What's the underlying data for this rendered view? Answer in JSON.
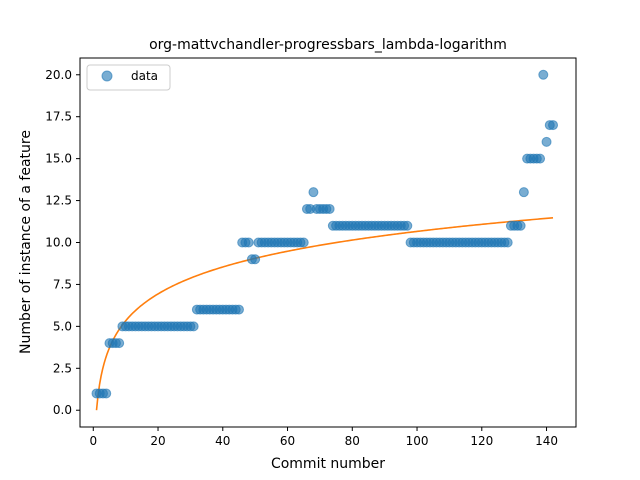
{
  "chart_data": {
    "type": "scatter",
    "title": "org-mattvchandler-progressbars_lambda-logarithm",
    "xlabel": "Commit number",
    "ylabel": "Number of instance of a feature",
    "xlim": [
      -4.1,
      149.1
    ],
    "ylim": [
      -1.0,
      21.0
    ],
    "x_ticks": [
      0,
      20,
      40,
      60,
      80,
      100,
      120,
      140
    ],
    "y_ticks": [
      0.0,
      2.5,
      5.0,
      7.5,
      10.0,
      12.5,
      15.0,
      17.5,
      20.0
    ],
    "x_tick_labels": [
      "0",
      "20",
      "40",
      "60",
      "80",
      "100",
      "120",
      "140"
    ],
    "y_tick_labels": [
      "0.0",
      "2.5",
      "5.0",
      "7.5",
      "10.0",
      "12.5",
      "15.0",
      "17.5",
      "20.0"
    ],
    "grid": false,
    "legend_position": "upper-left",
    "series": [
      {
        "name": "data",
        "kind": "scatter",
        "color": "#1f77b4",
        "points": [
          [
            1,
            1
          ],
          [
            2,
            1
          ],
          [
            3,
            1
          ],
          [
            4,
            1
          ],
          [
            5,
            4
          ],
          [
            6,
            4
          ],
          [
            7,
            4
          ],
          [
            8,
            4
          ],
          [
            9,
            5
          ],
          [
            10,
            5
          ],
          [
            11,
            5
          ],
          [
            12,
            5
          ],
          [
            13,
            5
          ],
          [
            14,
            5
          ],
          [
            15,
            5
          ],
          [
            16,
            5
          ],
          [
            17,
            5
          ],
          [
            18,
            5
          ],
          [
            19,
            5
          ],
          [
            20,
            5
          ],
          [
            21,
            5
          ],
          [
            22,
            5
          ],
          [
            23,
            5
          ],
          [
            24,
            5
          ],
          [
            25,
            5
          ],
          [
            26,
            5
          ],
          [
            27,
            5
          ],
          [
            28,
            5
          ],
          [
            29,
            5
          ],
          [
            30,
            5
          ],
          [
            31,
            5
          ],
          [
            32,
            6
          ],
          [
            33,
            6
          ],
          [
            34,
            6
          ],
          [
            35,
            6
          ],
          [
            36,
            6
          ],
          [
            37,
            6
          ],
          [
            38,
            6
          ],
          [
            39,
            6
          ],
          [
            40,
            6
          ],
          [
            41,
            6
          ],
          [
            42,
            6
          ],
          [
            43,
            6
          ],
          [
            44,
            6
          ],
          [
            45,
            6
          ],
          [
            46,
            10
          ],
          [
            47,
            10
          ],
          [
            48,
            10
          ],
          [
            49,
            9
          ],
          [
            50,
            9
          ],
          [
            51,
            10
          ],
          [
            52,
            10
          ],
          [
            53,
            10
          ],
          [
            54,
            10
          ],
          [
            55,
            10
          ],
          [
            56,
            10
          ],
          [
            57,
            10
          ],
          [
            58,
            10
          ],
          [
            59,
            10
          ],
          [
            60,
            10
          ],
          [
            61,
            10
          ],
          [
            62,
            10
          ],
          [
            63,
            10
          ],
          [
            64,
            10
          ],
          [
            65,
            10
          ],
          [
            66,
            12
          ],
          [
            67,
            12
          ],
          [
            68,
            13
          ],
          [
            69,
            12
          ],
          [
            70,
            12
          ],
          [
            71,
            12
          ],
          [
            72,
            12
          ],
          [
            73,
            12
          ],
          [
            74,
            11
          ],
          [
            75,
            11
          ],
          [
            76,
            11
          ],
          [
            77,
            11
          ],
          [
            78,
            11
          ],
          [
            79,
            11
          ],
          [
            80,
            11
          ],
          [
            81,
            11
          ],
          [
            82,
            11
          ],
          [
            83,
            11
          ],
          [
            84,
            11
          ],
          [
            85,
            11
          ],
          [
            86,
            11
          ],
          [
            87,
            11
          ],
          [
            88,
            11
          ],
          [
            89,
            11
          ],
          [
            90,
            11
          ],
          [
            91,
            11
          ],
          [
            92,
            11
          ],
          [
            93,
            11
          ],
          [
            94,
            11
          ],
          [
            95,
            11
          ],
          [
            96,
            11
          ],
          [
            97,
            11
          ],
          [
            98,
            10
          ],
          [
            99,
            10
          ],
          [
            100,
            10
          ],
          [
            101,
            10
          ],
          [
            102,
            10
          ],
          [
            103,
            10
          ],
          [
            104,
            10
          ],
          [
            105,
            10
          ],
          [
            106,
            10
          ],
          [
            107,
            10
          ],
          [
            108,
            10
          ],
          [
            109,
            10
          ],
          [
            110,
            10
          ],
          [
            111,
            10
          ],
          [
            112,
            10
          ],
          [
            113,
            10
          ],
          [
            114,
            10
          ],
          [
            115,
            10
          ],
          [
            116,
            10
          ],
          [
            117,
            10
          ],
          [
            118,
            10
          ],
          [
            119,
            10
          ],
          [
            120,
            10
          ],
          [
            121,
            10
          ],
          [
            122,
            10
          ],
          [
            123,
            10
          ],
          [
            124,
            10
          ],
          [
            125,
            10
          ],
          [
            126,
            10
          ],
          [
            127,
            10
          ],
          [
            128,
            10
          ],
          [
            129,
            11
          ],
          [
            130,
            11
          ],
          [
            131,
            11
          ],
          [
            132,
            11
          ],
          [
            133,
            13
          ],
          [
            134,
            15
          ],
          [
            135,
            15
          ],
          [
            136,
            15
          ],
          [
            137,
            15
          ],
          [
            138,
            15
          ],
          [
            139,
            20
          ],
          [
            140,
            16
          ],
          [
            141,
            17
          ],
          [
            142,
            17
          ]
        ]
      },
      {
        "name": "",
        "kind": "line",
        "color": "#ff7f0e",
        "function": "logarithmic",
        "a": 2.315,
        "b": 0.0,
        "x_range": [
          1,
          142
        ]
      }
    ]
  }
}
